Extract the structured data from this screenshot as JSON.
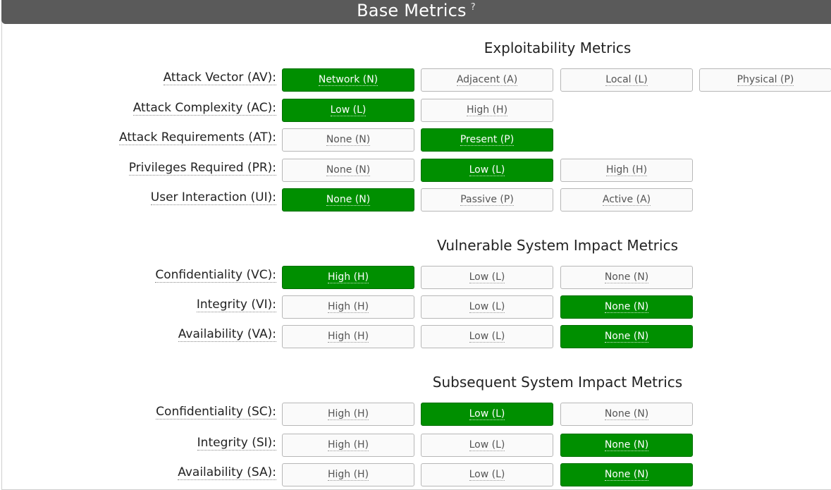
{
  "header": {
    "title": "Base Metrics",
    "help": "?"
  },
  "sections": [
    {
      "title": "Exploitability Metrics",
      "rows": [
        {
          "label": "Attack Vector (AV):",
          "options": [
            "Network (N)",
            "Adjacent (A)",
            "Local (L)",
            "Physical (P)"
          ],
          "selected": 0
        },
        {
          "label": "Attack Complexity (AC):",
          "options": [
            "Low (L)",
            "High (H)"
          ],
          "selected": 0
        },
        {
          "label": "Attack Requirements (AT):",
          "options": [
            "None (N)",
            "Present (P)"
          ],
          "selected": 1
        },
        {
          "label": "Privileges Required (PR):",
          "options": [
            "None (N)",
            "Low (L)",
            "High (H)"
          ],
          "selected": 1
        },
        {
          "label": "User Interaction (UI):",
          "options": [
            "None (N)",
            "Passive (P)",
            "Active (A)"
          ],
          "selected": 0
        }
      ]
    },
    {
      "title": "Vulnerable System Impact Metrics",
      "rows": [
        {
          "label": "Confidentiality (VC):",
          "options": [
            "High (H)",
            "Low (L)",
            "None (N)"
          ],
          "selected": 0
        },
        {
          "label": "Integrity (VI):",
          "options": [
            "High (H)",
            "Low (L)",
            "None (N)"
          ],
          "selected": 2
        },
        {
          "label": "Availability (VA):",
          "options": [
            "High (H)",
            "Low (L)",
            "None (N)"
          ],
          "selected": 2
        }
      ]
    },
    {
      "title": "Subsequent System Impact Metrics",
      "rows": [
        {
          "label": "Confidentiality (SC):",
          "options": [
            "High (H)",
            "Low (L)",
            "None (N)"
          ],
          "selected": 1
        },
        {
          "label": "Integrity (SI):",
          "options": [
            "High (H)",
            "Low (L)",
            "None (N)"
          ],
          "selected": 2
        },
        {
          "label": "Availability (SA):",
          "options": [
            "High (H)",
            "Low (L)",
            "None (N)"
          ],
          "selected": 2
        }
      ]
    }
  ],
  "colors": {
    "header_bg": "#5a5a5a",
    "selected_bg": "#008f00",
    "unselected_bg": "#fafafa"
  }
}
